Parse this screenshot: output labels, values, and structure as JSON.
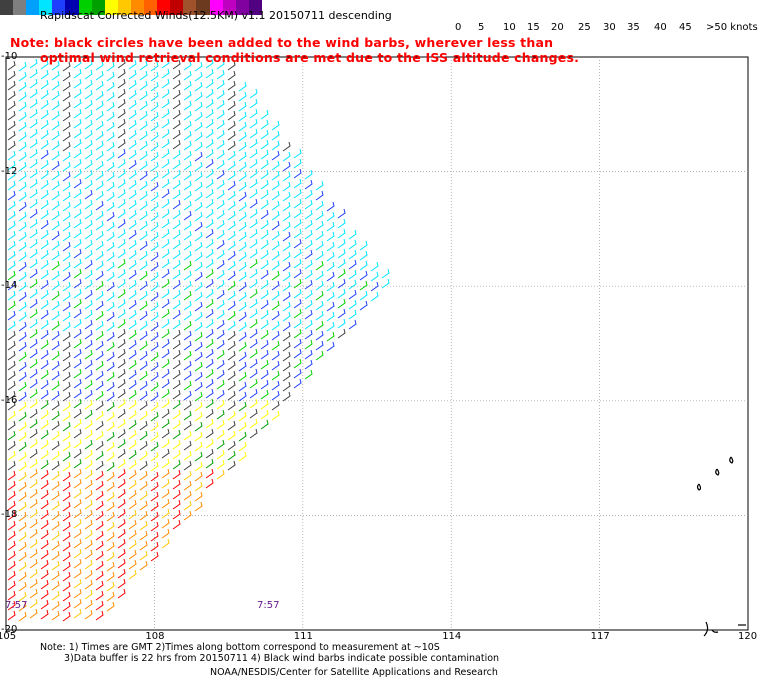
{
  "title": "Rapidscat Corrected Winds(12.5KM) v1.1 20150711 descending",
  "note_line1": "Note: black circles have been added to the wind barbs, wherever less than",
  "note_line2": "optimal wind retrieval conditions are met due to the ISS altitude changes.",
  "legend": {
    "colors": [
      "#404040",
      "#7f7f7f",
      "#00a0ff",
      "#00e5ff",
      "#1f3fff",
      "#0000b0",
      "#00d000",
      "#00a000",
      "#ffff00",
      "#ffc800",
      "#ff8c00",
      "#ff6000",
      "#ff0000",
      "#c00000",
      "#a0522d",
      "#6b3a1f",
      "#ff00ff",
      "#c000c0",
      "#8000a0",
      "#500080"
    ],
    "labels": [
      "0",
      "5",
      "10",
      "15",
      "20",
      "25",
      "30",
      "35",
      "40",
      "45",
      ">50 knots"
    ]
  },
  "lat_labels": [
    "10",
    "12",
    "14",
    "16",
    "18",
    "20"
  ],
  "lat_label_display": [
    "-10",
    "-12",
    "-14",
    "-16",
    "-18",
    "-20"
  ],
  "lon_labels": [
    "105",
    "108",
    "111",
    "114",
    "117",
    "120"
  ],
  "times": [
    "7:57",
    "7:57"
  ],
  "footer": {
    "line1": "Note: 1) Times are GMT 2)Times along bottom correspond to measurement at ~10S",
    "line2": "3)Data buffer is 22 hrs from 20150711 4) Black wind barbs indicate possible contamination",
    "line3": "NOAA/NESDIS/Center for Satellite Applications and Research"
  },
  "chart_data": {
    "type": "wind-barb map",
    "lon_range": [
      105,
      120
    ],
    "lat_range": [
      -10,
      -20
    ],
    "grid": true,
    "speed_units": "knots"
  }
}
